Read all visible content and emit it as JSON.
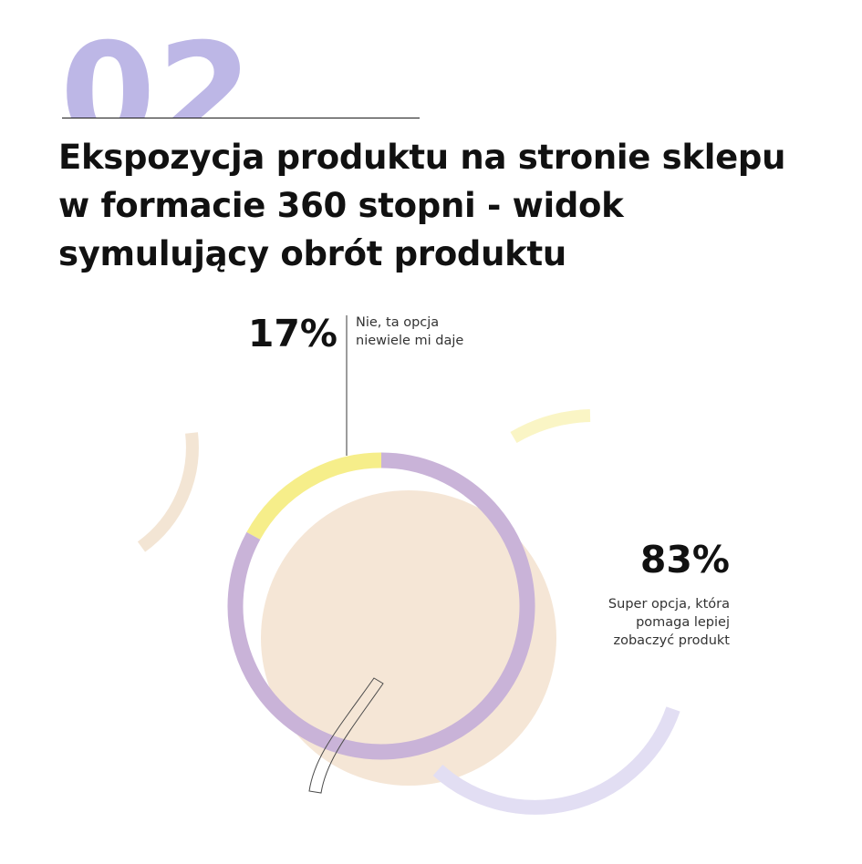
{
  "header": {
    "number": "02",
    "title_lines": [
      "Ekspozycja produktu na stronie sklepu",
      "w formacie 360 stopni - widok",
      "symulujący obrót produktu"
    ]
  },
  "chart_data": {
    "type": "pie",
    "donut": true,
    "categories": [
      "Super opcja, która pomaga lepiej zobaczyć produkt",
      "Nie, ta opcja niewiele mi daje"
    ],
    "values": [
      83,
      17
    ],
    "series": [
      {
        "values": [
          83,
          17
        ]
      }
    ],
    "colors": [
      "#c9b3d8",
      "#f6ee8a"
    ],
    "labels": [
      {
        "percent": "83%",
        "lines": [
          "Super opcja, która",
          "pomaga lepiej",
          "zobaczyć produkt"
        ]
      },
      {
        "percent": "17%",
        "lines": [
          "Nie, ta opcja",
          "niewiele mi daje"
        ]
      }
    ]
  },
  "colors": {
    "number": "#bdb7e6",
    "peach": "#f5e6d6",
    "yellow": "#f6ee8a",
    "lavender": "#c9b3d8",
    "periwinkle": "#e2def3"
  }
}
